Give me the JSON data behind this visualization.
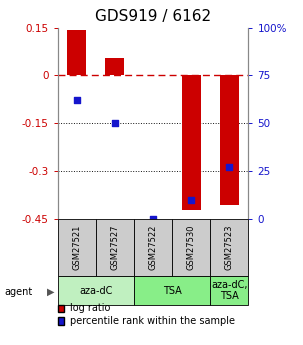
{
  "title": "GDS919 / 6162",
  "samples": [
    "GSM27521",
    "GSM27527",
    "GSM27522",
    "GSM27530",
    "GSM27523"
  ],
  "log_ratios": [
    0.143,
    0.055,
    0.0,
    -0.42,
    -0.405
  ],
  "percentile_ranks": [
    62,
    50,
    0,
    10,
    27
  ],
  "ylim": [
    -0.45,
    0.15
  ],
  "yticks_left": [
    0.15,
    0.0,
    -0.15,
    -0.3,
    -0.45
  ],
  "ytick_left_labels": [
    "0.15",
    "0",
    "-0.15",
    "-0.3",
    "-0.45"
  ],
  "yticks_right_vals": [
    0.15,
    0.0,
    -0.15,
    -0.3,
    -0.45
  ],
  "ytick_right_labels": [
    "100%",
    "75",
    "50",
    "25",
    "0"
  ],
  "bar_color": "#cc0000",
  "dot_color": "#1515cc",
  "hline_0_color": "#cc0000",
  "grid_color": "#111111",
  "bg_sample_box": "#cccccc",
  "bg_agent_light": "#c0f0c0",
  "bg_agent_medium": "#88ee88",
  "group_spans": [
    [
      0,
      2,
      "aza-dC",
      "#c0f0c0"
    ],
    [
      2,
      4,
      "TSA",
      "#88ee88"
    ],
    [
      4,
      5,
      "aza-dC,\nTSA",
      "#88ee88"
    ]
  ],
  "bar_width": 0.5,
  "title_fontsize": 11,
  "tick_fontsize": 7.5,
  "sample_fontsize": 6,
  "agent_fontsize": 7,
  "legend_fontsize": 7
}
